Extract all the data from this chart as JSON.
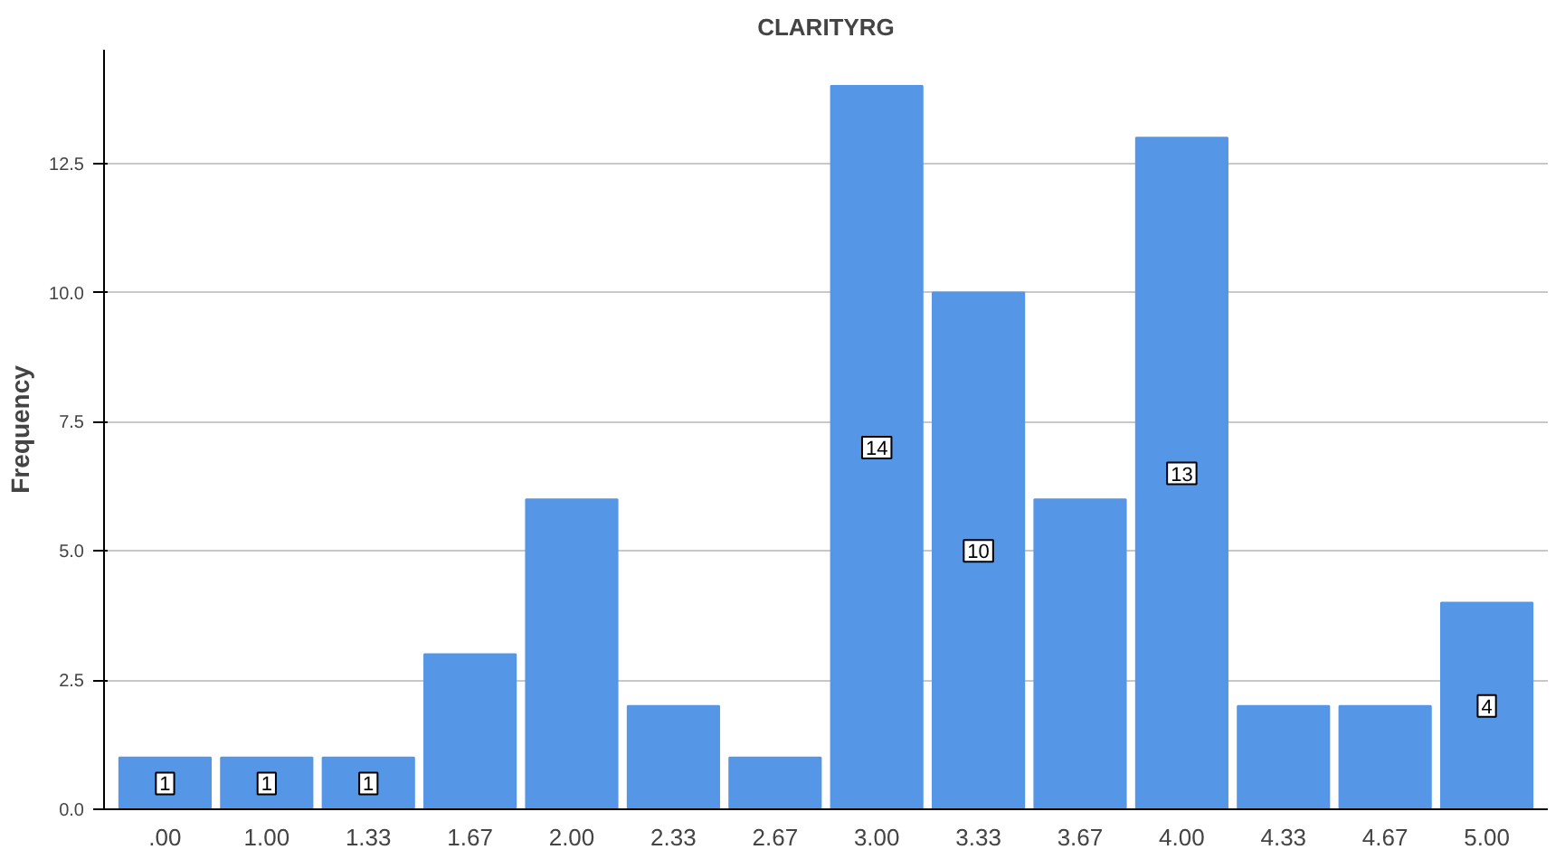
{
  "chart_data": {
    "type": "bar",
    "title": "CLARITYRG",
    "ylabel": "Frequency",
    "categories": [
      ".00",
      "1.00",
      "1.33",
      "1.67",
      "2.00",
      "2.33",
      "2.67",
      "3.00",
      "3.33",
      "3.67",
      "4.00",
      "4.33",
      "4.67",
      "5.00"
    ],
    "values": [
      1,
      1,
      1,
      3,
      6,
      2,
      1,
      14,
      10,
      6,
      13,
      2,
      2,
      4
    ],
    "value_labels": [
      "1",
      "1",
      "1",
      null,
      null,
      null,
      null,
      "14",
      "10",
      null,
      "13",
      null,
      null,
      "4"
    ],
    "color": "#5596e6",
    "ylim": [
      0,
      14.7
    ],
    "yticks": [
      {
        "value": 0,
        "label": "0.0"
      },
      {
        "value": 2.5,
        "label": "2.5"
      },
      {
        "value": 5,
        "label": "5.0"
      },
      {
        "value": 7.5,
        "label": "7.5"
      },
      {
        "value": 10,
        "label": "10.0"
      },
      {
        "value": 12.5,
        "label": "12.5"
      }
    ],
    "grid": "y"
  }
}
